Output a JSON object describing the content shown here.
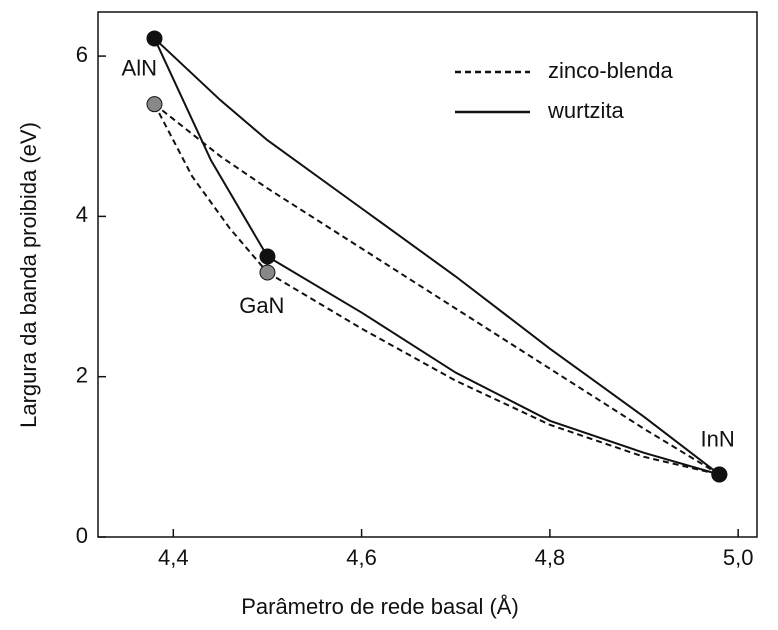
{
  "chart_data": {
    "type": "line",
    "xlabel": "Parâmetro de rede basal (Å)",
    "ylabel": "Largura da banda proibida (eV)",
    "xlim": [
      4.32,
      5.02
    ],
    "ylim": [
      0,
      6.55
    ],
    "xticks": [
      {
        "value": 4.4,
        "label": "4,4"
      },
      {
        "value": 4.6,
        "label": "4,6"
      },
      {
        "value": 4.8,
        "label": "4,8"
      },
      {
        "value": 5.0,
        "label": "5,0"
      }
    ],
    "yticks": [
      0,
      2,
      4,
      6
    ],
    "legend": "upper right",
    "series": [
      {
        "name": "zinco-blenda",
        "color": "#111111",
        "dash": true,
        "point_color": "#888888",
        "points": {
          "x": [
            4.38,
            4.5,
            4.98
          ],
          "values": [
            5.4,
            3.3,
            0.78
          ]
        },
        "segments": [
          {
            "x": [
              4.38,
              4.42,
              4.46,
              4.5
            ],
            "values": [
              5.4,
              4.5,
              3.85,
              3.3
            ]
          },
          {
            "x": [
              4.5,
              4.6,
              4.7,
              4.8,
              4.9,
              4.98
            ],
            "values": [
              3.3,
              2.6,
              1.95,
              1.4,
              1.0,
              0.78
            ]
          },
          {
            "x": [
              4.38,
              4.45,
              4.5,
              4.6,
              4.7,
              4.8,
              4.9,
              4.98
            ],
            "values": [
              5.4,
              4.75,
              4.35,
              3.6,
              2.85,
              2.1,
              1.35,
              0.78
            ]
          }
        ]
      },
      {
        "name": "wurtzita",
        "color": "#111111",
        "dash": false,
        "point_color": "#111111",
        "points": {
          "x": [
            4.38,
            4.5,
            4.98
          ],
          "values": [
            6.22,
            3.5,
            0.78
          ]
        },
        "segments": [
          {
            "x": [
              4.38,
              4.44,
              4.5
            ],
            "values": [
              6.22,
              4.7,
              3.5
            ]
          },
          {
            "x": [
              4.5,
              4.6,
              4.7,
              4.8,
              4.9,
              4.98
            ],
            "values": [
              3.5,
              2.8,
              2.05,
              1.45,
              1.05,
              0.78
            ]
          },
          {
            "x": [
              4.38,
              4.45,
              4.5,
              4.6,
              4.7,
              4.8,
              4.9,
              4.98
            ],
            "values": [
              6.22,
              5.45,
              4.95,
              4.1,
              3.25,
              2.35,
              1.5,
              0.78
            ]
          }
        ]
      }
    ],
    "annotations": [
      {
        "text": "AlN",
        "x": 4.345,
        "y": 5.83
      },
      {
        "text": "GaN",
        "x": 4.47,
        "y": 2.87
      },
      {
        "text": "InN",
        "x": 4.96,
        "y": 1.2
      }
    ]
  }
}
